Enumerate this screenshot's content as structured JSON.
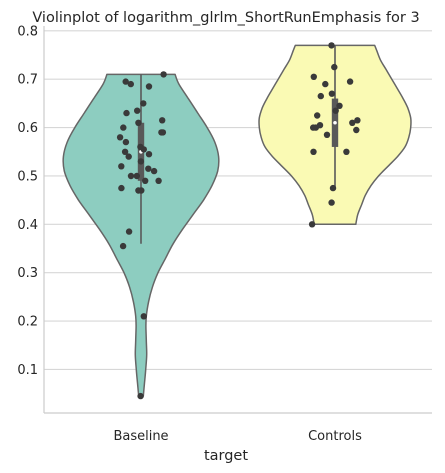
{
  "chart_data": {
    "type": "violin",
    "title": "Violinplot of logarithm_glrlm_ShortRunEmphasis for 3",
    "xlabel": "target",
    "ylabel": "",
    "categories": [
      "Baseline",
      "Controls"
    ],
    "ylim": [
      0.01,
      0.81
    ],
    "yticks": [
      0.1,
      0.2,
      0.3,
      0.4,
      0.5,
      0.6,
      0.7,
      0.8
    ],
    "ytick_labels": [
      "0.1",
      "0.2",
      "0.3",
      "0.4",
      "0.5",
      "0.6",
      "0.7",
      "0.8"
    ],
    "grid": "horizontal",
    "colors": {
      "Baseline": "#8dcdc0",
      "Controls": "#fafab4",
      "outline": "#666666",
      "points": "#3a3a3a",
      "grid": "#d7d7d7",
      "spine": "#cccccc"
    },
    "violins": [
      {
        "name": "Baseline",
        "range": [
          0.045,
          0.71
        ],
        "quartiles": [
          0.49,
          0.55,
          0.61
        ],
        "whisker": [
          0.36,
          0.71
        ],
        "profile": [
          [
            0.045,
            0.012
          ],
          [
            0.07,
            0.018
          ],
          [
            0.1,
            0.025
          ],
          [
            0.13,
            0.03
          ],
          [
            0.16,
            0.028
          ],
          [
            0.19,
            0.026
          ],
          [
            0.21,
            0.028
          ],
          [
            0.24,
            0.04
          ],
          [
            0.27,
            0.06
          ],
          [
            0.3,
            0.09
          ],
          [
            0.33,
            0.13
          ],
          [
            0.36,
            0.17
          ],
          [
            0.39,
            0.22
          ],
          [
            0.42,
            0.275
          ],
          [
            0.45,
            0.33
          ],
          [
            0.48,
            0.375
          ],
          [
            0.51,
            0.405
          ],
          [
            0.54,
            0.41
          ],
          [
            0.57,
            0.39
          ],
          [
            0.6,
            0.35
          ],
          [
            0.63,
            0.3
          ],
          [
            0.66,
            0.25
          ],
          [
            0.69,
            0.2
          ],
          [
            0.71,
            0.18
          ]
        ],
        "points": [
          0.045,
          0.21,
          0.355,
          0.385,
          0.47,
          0.47,
          0.475,
          0.49,
          0.49,
          0.5,
          0.5,
          0.51,
          0.515,
          0.52,
          0.53,
          0.54,
          0.545,
          0.55,
          0.555,
          0.56,
          0.57,
          0.58,
          0.59,
          0.59,
          0.6,
          0.61,
          0.615,
          0.63,
          0.635,
          0.65,
          0.685,
          0.69,
          0.695,
          0.71
        ]
      },
      {
        "name": "Controls",
        "range": [
          0.4,
          0.77
        ],
        "quartiles": [
          0.56,
          0.61,
          0.66
        ],
        "whisker": [
          0.475,
          0.77
        ],
        "profile": [
          [
            0.4,
            0.11
          ],
          [
            0.42,
            0.12
          ],
          [
            0.44,
            0.14
          ],
          [
            0.46,
            0.16
          ],
          [
            0.48,
            0.19
          ],
          [
            0.5,
            0.23
          ],
          [
            0.52,
            0.28
          ],
          [
            0.54,
            0.33
          ],
          [
            0.56,
            0.37
          ],
          [
            0.58,
            0.39
          ],
          [
            0.6,
            0.4
          ],
          [
            0.62,
            0.4
          ],
          [
            0.64,
            0.385
          ],
          [
            0.66,
            0.36
          ],
          [
            0.68,
            0.33
          ],
          [
            0.7,
            0.3
          ],
          [
            0.72,
            0.27
          ],
          [
            0.74,
            0.24
          ],
          [
            0.76,
            0.22
          ],
          [
            0.77,
            0.21
          ]
        ],
        "points": [
          0.4,
          0.445,
          0.475,
          0.55,
          0.55,
          0.585,
          0.595,
          0.6,
          0.6,
          0.605,
          0.61,
          0.615,
          0.625,
          0.635,
          0.645,
          0.665,
          0.67,
          0.69,
          0.695,
          0.705,
          0.725,
          0.77
        ]
      }
    ]
  }
}
